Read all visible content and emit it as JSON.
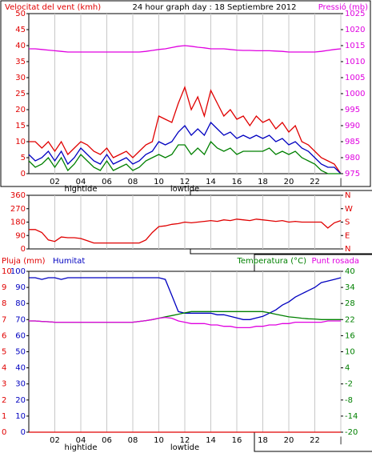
{
  "chart_data": [
    {
      "type": "line",
      "title": "24 hour graph day : 18 Septiembre 2012",
      "ylabel": "Velocitat del vent (kmh)",
      "xlim": [
        0,
        24
      ],
      "xticks": [
        {
          "value": 2,
          "label": "02"
        },
        {
          "value": 4,
          "label": "04"
        },
        {
          "value": 6,
          "label": "06"
        },
        {
          "value": 8,
          "label": "08"
        },
        10,
        12,
        14,
        16,
        18,
        20,
        22,
        {
          "value": 24,
          "label": "|"
        }
      ],
      "annotations": [
        {
          "text": "hightide",
          "x": 4
        },
        {
          "text": "lowtide",
          "x": 12
        }
      ],
      "ylim": [
        0,
        50
      ],
      "yticks": [
        0,
        5,
        10,
        15,
        20,
        25,
        30,
        35,
        40,
        45,
        50
      ],
      "ycolor": "#e00000",
      "y2lim": [
        975,
        1025
      ],
      "y2ticks": [
        975,
        980,
        985,
        990,
        995,
        1000,
        1005,
        1010,
        1015,
        1020,
        1025
      ],
      "y2color": "#e000e0",
      "grid": true,
      "x": [
        0,
        0.5,
        1,
        1.5,
        2,
        2.5,
        3,
        3.5,
        4,
        4.5,
        5,
        5.5,
        6,
        6.5,
        7,
        7.5,
        8,
        8.5,
        9,
        9.5,
        10,
        10.5,
        11,
        11.5,
        12,
        12.5,
        13,
        13.5,
        14,
        14.5,
        15,
        15.5,
        16,
        16.5,
        17,
        17.5,
        18,
        18.5,
        19,
        19.5,
        20,
        20.5,
        21,
        21.5,
        22,
        22.5,
        23,
        23.5,
        24
      ],
      "series": [
        {
          "color": "#e00000",
          "values": [
            10,
            10,
            8,
            10,
            7,
            10,
            6,
            8,
            10,
            9,
            7,
            6,
            8,
            5,
            6,
            7,
            5,
            7,
            9,
            10,
            18,
            17,
            16,
            22,
            27,
            20,
            24,
            18,
            26,
            22,
            18,
            20,
            17,
            18,
            15,
            18,
            16,
            17,
            14,
            16,
            13,
            15,
            10,
            9,
            7,
            5,
            4,
            3,
            0
          ]
        },
        {
          "color": "#0000c0",
          "values": [
            6,
            4,
            5,
            7,
            4,
            7,
            3,
            5,
            8,
            6,
            4,
            3,
            6,
            3,
            4,
            5,
            3,
            4,
            6,
            7,
            10,
            9,
            10,
            13,
            15,
            12,
            14,
            12,
            16,
            14,
            12,
            13,
            11,
            12,
            11,
            12,
            11,
            12,
            10,
            11,
            9,
            10,
            8,
            7,
            5,
            3,
            2,
            2,
            0
          ]
        },
        {
          "color": "#008000",
          "values": [
            4,
            2,
            3,
            5,
            2,
            5,
            1,
            3,
            6,
            4,
            2,
            1,
            4,
            1,
            2,
            3,
            1,
            2,
            4,
            5,
            6,
            5,
            6,
            9,
            9,
            6,
            8,
            6,
            10,
            8,
            7,
            8,
            6,
            7,
            7,
            7,
            7,
            8,
            6,
            7,
            6,
            7,
            5,
            4,
            3,
            1,
            0,
            0,
            0
          ]
        },
        {
          "name": "Pressió (mb)",
          "color": "#e000e0",
          "axis": "y2",
          "values": [
            1014,
            1014,
            1013.8,
            1013.6,
            1013.4,
            1013.2,
            1013,
            1013,
            1013,
            1013,
            1013,
            1013,
            1013,
            1013,
            1013,
            1013,
            1013,
            1013,
            1013.2,
            1013.5,
            1013.8,
            1014,
            1014.4,
            1014.8,
            1015,
            1014.8,
            1014.5,
            1014.3,
            1014,
            1014,
            1014,
            1013.8,
            1013.6,
            1013.5,
            1013.5,
            1013.4,
            1013.4,
            1013.4,
            1013.3,
            1013.2,
            1013,
            1013,
            1013,
            1013,
            1013,
            1013.2,
            1013.5,
            1013.8,
            1014
          ]
        }
      ]
    },
    {
      "type": "line",
      "xlim": [
        0,
        24
      ],
      "xticks": [
        2,
        4,
        6,
        8,
        10,
        12,
        14,
        16,
        18,
        20,
        22,
        24
      ],
      "ylim": [
        0,
        360
      ],
      "yticks": [
        0,
        90,
        180,
        270,
        360
      ],
      "ycolor": "#e00000",
      "y2lim": [
        0,
        360
      ],
      "y2ticks": [
        {
          "value": 0,
          "label": "N"
        },
        {
          "value": 90,
          "label": "E"
        },
        {
          "value": 180,
          "label": "S"
        },
        {
          "value": 270,
          "label": "W"
        },
        {
          "value": 360,
          "label": "N"
        }
      ],
      "y2color": "#e00000",
      "grid": true,
      "x": [
        0,
        0.5,
        1,
        1.5,
        2,
        2.5,
        3,
        3.5,
        4,
        4.5,
        5,
        5.5,
        6,
        6.5,
        7,
        7.5,
        8,
        8.5,
        9,
        9.5,
        10,
        10.5,
        11,
        11.5,
        12,
        12.5,
        13,
        13.5,
        14,
        14.5,
        15,
        15.5,
        16,
        16.5,
        17,
        17.5,
        18,
        18.5,
        19,
        19.5,
        20,
        20.5,
        21,
        21.5,
        22,
        22.5,
        23,
        23.5,
        24
      ],
      "series": [
        {
          "color": "#e00000",
          "values": [
            130,
            130,
            110,
            60,
            50,
            80,
            75,
            75,
            70,
            55,
            40,
            40,
            40,
            40,
            40,
            40,
            40,
            40,
            60,
            110,
            150,
            155,
            165,
            170,
            180,
            175,
            180,
            185,
            190,
            185,
            195,
            190,
            200,
            195,
            190,
            200,
            195,
            190,
            185,
            190,
            180,
            185,
            180,
            180,
            180,
            180,
            140,
            175,
            190
          ]
        }
      ]
    },
    {
      "type": "line",
      "xlim": [
        0,
        24
      ],
      "xticks": [
        {
          "value": 2,
          "label": "02"
        },
        {
          "value": 4,
          "label": "04"
        },
        {
          "value": 6,
          "label": "06"
        },
        {
          "value": 8,
          "label": "08"
        },
        10,
        12,
        14,
        16,
        18,
        20,
        22,
        {
          "value": 24,
          "label": "|"
        }
      ],
      "annotations": [
        {
          "text": "hightide",
          "x": 4
        },
        {
          "text": "lowtide",
          "x": 12
        }
      ],
      "ylim": [
        0,
        100
      ],
      "yticks": [
        0,
        10,
        20,
        30,
        40,
        50,
        60,
        70,
        80,
        90,
        100
      ],
      "ycolor": "#0000c0",
      "y2lim": [
        -20,
        40
      ],
      "y2ticks": [
        -20,
        -14,
        -8,
        -2,
        4,
        10,
        16,
        22,
        28,
        34,
        40
      ],
      "y2color": "#008000",
      "y3lim": [
        0,
        10
      ],
      "y3ticks": [
        0,
        1,
        2,
        3,
        4,
        5,
        6,
        7,
        8,
        9,
        10
      ],
      "y3color": "#e00000",
      "grid": true,
      "x": [
        0,
        0.5,
        1,
        1.5,
        2,
        2.5,
        3,
        3.5,
        4,
        4.5,
        5,
        5.5,
        6,
        6.5,
        7,
        7.5,
        8,
        8.5,
        9,
        9.5,
        10,
        10.5,
        11,
        11.5,
        12,
        12.5,
        13,
        13.5,
        14,
        14.5,
        15,
        15.5,
        16,
        16.5,
        17,
        17.5,
        18,
        18.5,
        19,
        19.5,
        20,
        20.5,
        21,
        21.5,
        22,
        22.5,
        23,
        23.5,
        24
      ],
      "series": [
        {
          "name": "Pluja (mm)",
          "color": "#e00000",
          "axis": "y3",
          "values": [
            0,
            0,
            0,
            0,
            0,
            0,
            0,
            0,
            0,
            0,
            0,
            0,
            0,
            0,
            0,
            0,
            0,
            0,
            0,
            0,
            0,
            0,
            0,
            0,
            0,
            0,
            0,
            0,
            0,
            0,
            0,
            0,
            0,
            0,
            0,
            0,
            0,
            0,
            0,
            0,
            0,
            0,
            0,
            0,
            0,
            0,
            0,
            0,
            0
          ]
        },
        {
          "name": "Humitat",
          "color": "#0000c0",
          "values": [
            96,
            96,
            95,
            96,
            96,
            95,
            96,
            96,
            96,
            96,
            96,
            96,
            96,
            96,
            96,
            96,
            96,
            96,
            96,
            96,
            96,
            95,
            85,
            75,
            74,
            74,
            74,
            74,
            74,
            73,
            73,
            72,
            71,
            70,
            70,
            71,
            72,
            74,
            76,
            79,
            81,
            84,
            86,
            88,
            90,
            93,
            94,
            95,
            96
          ]
        },
        {
          "name": "Temperatura (°C)",
          "color": "#008000",
          "axis": "y2",
          "values": [
            21.5,
            21.5,
            21.3,
            21.2,
            21,
            21,
            21,
            21,
            21,
            21,
            21,
            21,
            21,
            21,
            21,
            21,
            21,
            21.3,
            21.6,
            22,
            22.5,
            23,
            23.5,
            24,
            24.5,
            25,
            25,
            25,
            25,
            25,
            25,
            25,
            25,
            25,
            25,
            25,
            25,
            24.5,
            24,
            23.5,
            23,
            22.8,
            22.5,
            22.3,
            22.2,
            22,
            22,
            22,
            22
          ]
        },
        {
          "name": "Punt rosada",
          "color": "#e000e0",
          "axis": "y2",
          "values": [
            21.5,
            21.5,
            21.3,
            21.2,
            21,
            21,
            21,
            21,
            21,
            21,
            21,
            21,
            21,
            21,
            21,
            21,
            21,
            21.3,
            21.6,
            22,
            22.5,
            22.8,
            22.5,
            21.5,
            21,
            20.5,
            20.5,
            20.5,
            20,
            20,
            19.5,
            19.5,
            19,
            19,
            19,
            19.5,
            19.5,
            20,
            20,
            20.5,
            20.5,
            21,
            21,
            21,
            21,
            21,
            21.5,
            21.5,
            21.5
          ]
        }
      ]
    }
  ]
}
